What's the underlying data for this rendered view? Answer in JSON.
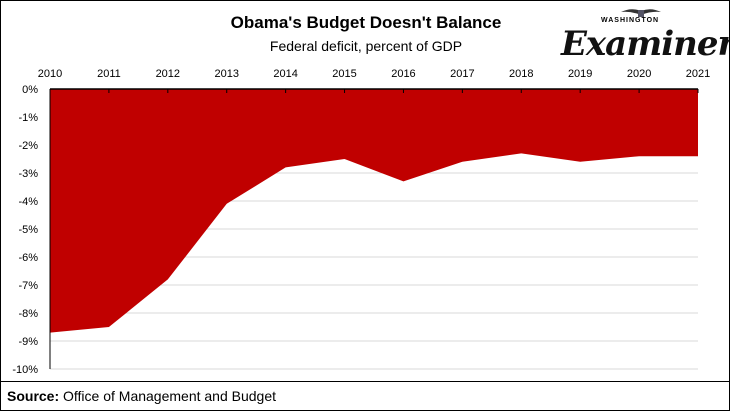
{
  "chart_data": {
    "type": "area",
    "title": "Obama's Budget Doesn't Balance",
    "subtitle": "Federal deficit, percent of GDP",
    "categories": [
      "2010",
      "2011",
      "2012",
      "2013",
      "2014",
      "2015",
      "2016",
      "2017",
      "2018",
      "2019",
      "2020",
      "2021"
    ],
    "values": [
      -8.7,
      -8.5,
      -6.8,
      -4.1,
      -2.8,
      -2.5,
      -3.3,
      -2.6,
      -2.3,
      -2.6,
      -2.4,
      -2.4
    ],
    "ylim": [
      -10,
      0
    ],
    "yticks": [
      "0%",
      "-1%",
      "-2%",
      "-3%",
      "-4%",
      "-5%",
      "-6%",
      "-7%",
      "-8%",
      "-9%",
      "-10%"
    ],
    "xaxis_position": "top",
    "grid": true,
    "fill_color": "#c00000",
    "xlabel": "",
    "ylabel": ""
  },
  "logo": {
    "top": "WASHINGTON",
    "main": "Examiner"
  },
  "source": {
    "label": "Source:",
    "text": " Office of Management and Budget"
  }
}
